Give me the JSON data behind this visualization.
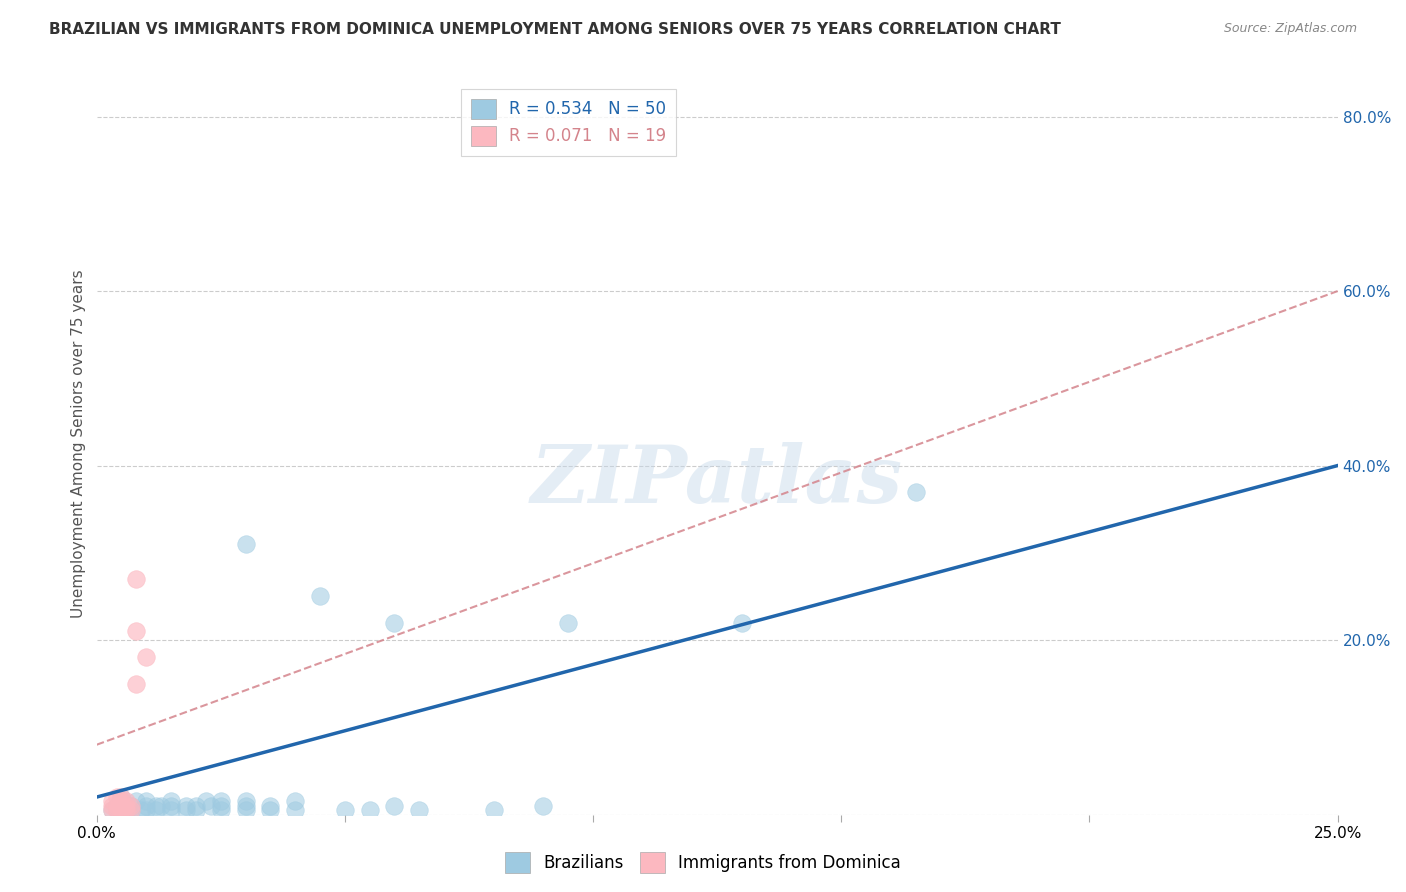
{
  "title": "BRAZILIAN VS IMMIGRANTS FROM DOMINICA UNEMPLOYMENT AMONG SENIORS OVER 75 YEARS CORRELATION CHART",
  "source": "Source: ZipAtlas.com",
  "ylabel": "Unemployment Among Seniors over 75 years",
  "background_color": "#ffffff",
  "xlim": [
    0.0,
    0.25
  ],
  "ylim": [
    0.0,
    0.85
  ],
  "yticks": [
    0.0,
    0.2,
    0.4,
    0.6,
    0.8
  ],
  "ytick_labels": [
    "",
    "20.0%",
    "40.0%",
    "60.0%",
    "80.0%"
  ],
  "xticks": [
    0.0,
    0.05,
    0.1,
    0.15,
    0.2,
    0.25
  ],
  "xtick_labels": [
    "0.0%",
    "",
    "",
    "",
    "",
    "25.0%"
  ],
  "brazilian_color": "#9ecae1",
  "dominica_color": "#fcb8c0",
  "brazilian_line_color": "#2166ac",
  "dominica_line_color": "#d4848c",
  "R_brazilian": 0.534,
  "N_brazilian": 50,
  "R_dominica": 0.071,
  "N_dominica": 19,
  "watermark": "ZIPatlas",
  "blue_line": [
    [
      0.0,
      0.02
    ],
    [
      0.25,
      0.4
    ]
  ],
  "pink_line": [
    [
      0.0,
      0.08
    ],
    [
      0.25,
      0.6
    ]
  ],
  "brazilian_points": [
    [
      0.003,
      0.005
    ],
    [
      0.004,
      0.01
    ],
    [
      0.004,
      0.005
    ],
    [
      0.005,
      0.005
    ],
    [
      0.005,
      0.01
    ],
    [
      0.005,
      0.015
    ],
    [
      0.005,
      0.02
    ],
    [
      0.006,
      0.005
    ],
    [
      0.006,
      0.01
    ],
    [
      0.007,
      0.005
    ],
    [
      0.007,
      0.01
    ],
    [
      0.008,
      0.015
    ],
    [
      0.009,
      0.005
    ],
    [
      0.01,
      0.005
    ],
    [
      0.01,
      0.01
    ],
    [
      0.01,
      0.015
    ],
    [
      0.012,
      0.01
    ],
    [
      0.012,
      0.005
    ],
    [
      0.013,
      0.01
    ],
    [
      0.015,
      0.005
    ],
    [
      0.015,
      0.01
    ],
    [
      0.015,
      0.015
    ],
    [
      0.018,
      0.005
    ],
    [
      0.018,
      0.01
    ],
    [
      0.02,
      0.01
    ],
    [
      0.02,
      0.005
    ],
    [
      0.022,
      0.015
    ],
    [
      0.023,
      0.01
    ],
    [
      0.025,
      0.005
    ],
    [
      0.025,
      0.01
    ],
    [
      0.025,
      0.015
    ],
    [
      0.03,
      0.01
    ],
    [
      0.03,
      0.015
    ],
    [
      0.03,
      0.005
    ],
    [
      0.035,
      0.005
    ],
    [
      0.035,
      0.01
    ],
    [
      0.04,
      0.005
    ],
    [
      0.04,
      0.015
    ],
    [
      0.05,
      0.005
    ],
    [
      0.055,
      0.005
    ],
    [
      0.06,
      0.01
    ],
    [
      0.065,
      0.005
    ],
    [
      0.08,
      0.005
    ],
    [
      0.09,
      0.01
    ],
    [
      0.03,
      0.31
    ],
    [
      0.045,
      0.25
    ],
    [
      0.06,
      0.22
    ],
    [
      0.095,
      0.22
    ],
    [
      0.13,
      0.22
    ],
    [
      0.165,
      0.37
    ]
  ],
  "dominica_points": [
    [
      0.003,
      0.005
    ],
    [
      0.003,
      0.01
    ],
    [
      0.003,
      0.015
    ],
    [
      0.004,
      0.005
    ],
    [
      0.004,
      0.01
    ],
    [
      0.004,
      0.02
    ],
    [
      0.005,
      0.005
    ],
    [
      0.005,
      0.01
    ],
    [
      0.005,
      0.015
    ],
    [
      0.005,
      0.02
    ],
    [
      0.006,
      0.005
    ],
    [
      0.006,
      0.01
    ],
    [
      0.006,
      0.015
    ],
    [
      0.007,
      0.005
    ],
    [
      0.007,
      0.01
    ],
    [
      0.008,
      0.15
    ],
    [
      0.008,
      0.21
    ],
    [
      0.008,
      0.27
    ],
    [
      0.01,
      0.18
    ]
  ]
}
